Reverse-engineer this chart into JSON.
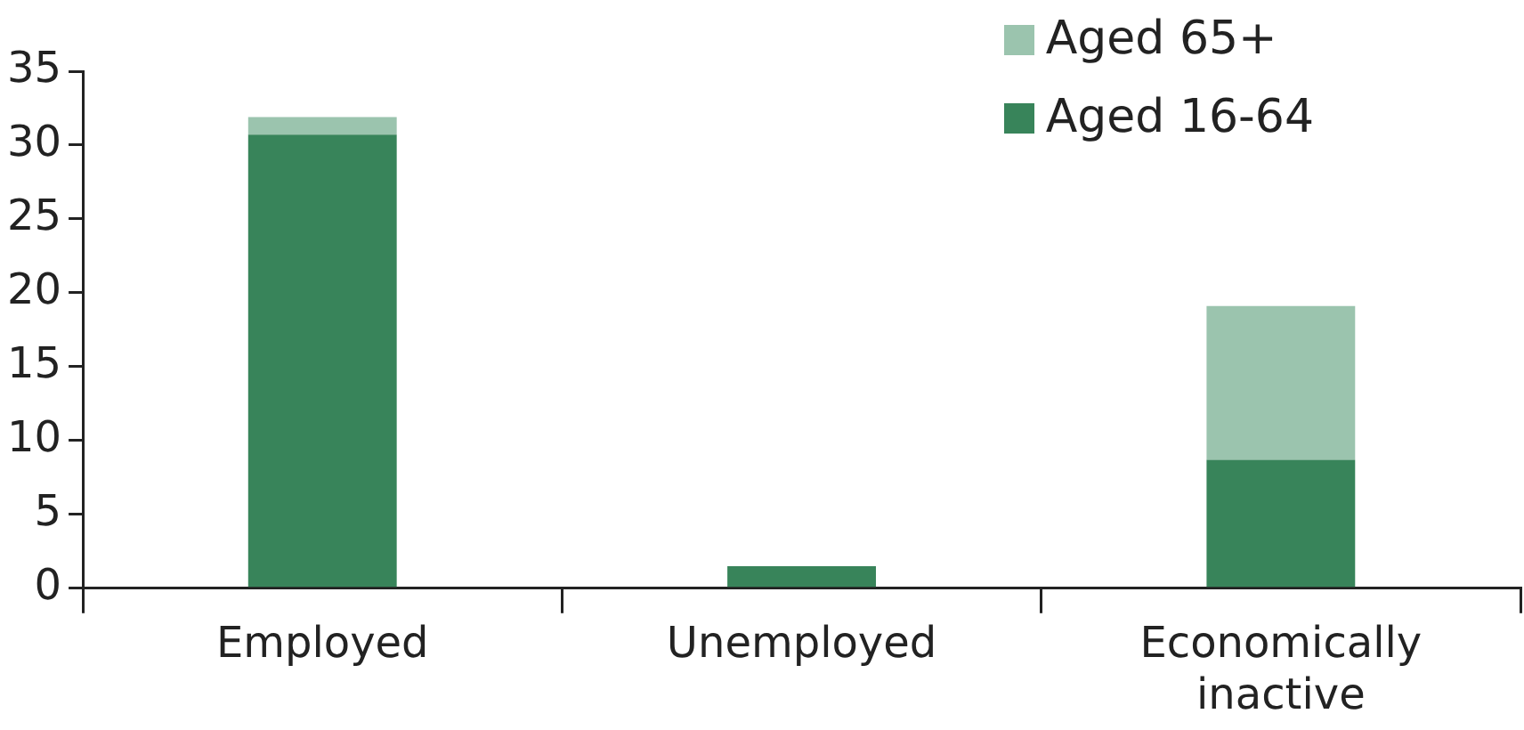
{
  "chart_data": {
    "type": "bar",
    "stacked": true,
    "categories": [
      "Employed",
      "Unemployed",
      "Economically inactive"
    ],
    "series": [
      {
        "name": "Aged 16-64",
        "color": "#38845a",
        "values": [
          30.7,
          1.5,
          8.7
        ]
      },
      {
        "name": "Aged 65+",
        "color": "#9bc4ae",
        "values": [
          1.2,
          0,
          10.4
        ]
      }
    ],
    "ylim": [
      0,
      35
    ],
    "yticks": [
      0,
      5,
      10,
      15,
      20,
      25,
      30,
      35
    ],
    "grid": false,
    "legend": "top right"
  }
}
